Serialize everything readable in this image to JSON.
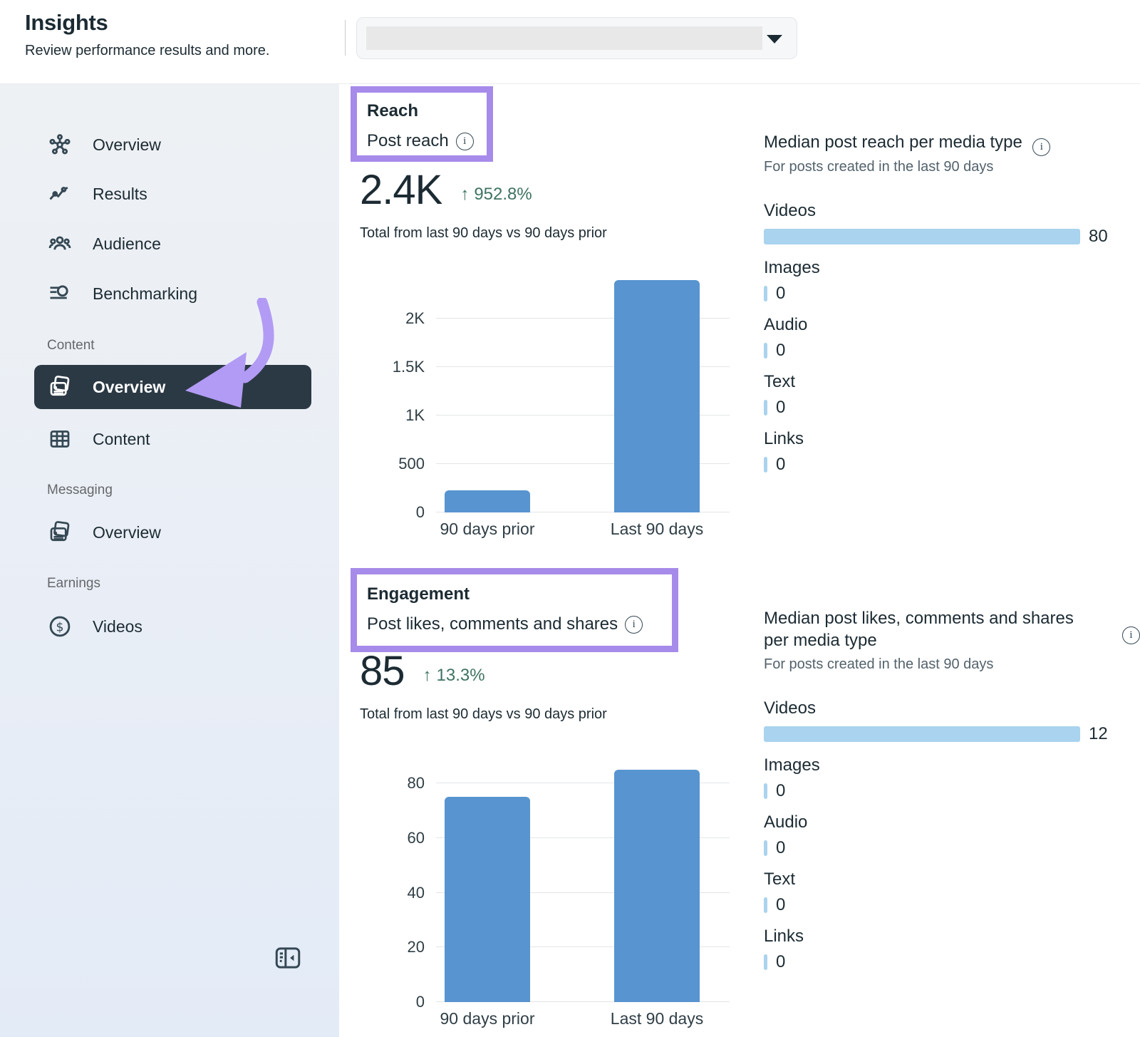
{
  "header": {
    "title": "Insights",
    "subtitle": "Review performance results and more."
  },
  "sidebar": {
    "main_items": [
      {
        "label": "Overview",
        "icon": "network-icon"
      },
      {
        "label": "Results",
        "icon": "trend-icon"
      },
      {
        "label": "Audience",
        "icon": "people-icon"
      },
      {
        "label": "Benchmarking",
        "icon": "benchmark-search-icon"
      }
    ],
    "sections": [
      {
        "label": "Content",
        "items": [
          {
            "label": "Overview",
            "icon": "posts-icon",
            "selected": true
          },
          {
            "label": "Content",
            "icon": "table-icon",
            "selected": false
          }
        ]
      },
      {
        "label": "Messaging",
        "items": [
          {
            "label": "Overview",
            "icon": "posts-icon",
            "selected": false
          }
        ]
      },
      {
        "label": "Earnings",
        "items": [
          {
            "label": "Videos",
            "icon": "dollar-icon",
            "selected": false
          }
        ]
      }
    ]
  },
  "reach": {
    "section_label": "Reach",
    "metric_label": "Post reach",
    "total": "2.4K",
    "change": "952.8%",
    "change_direction": "up",
    "caption": "Total from last 90 days vs 90 days prior"
  },
  "engagement": {
    "section_label": "Engagement",
    "metric_label": "Post likes, comments and shares",
    "total": "85",
    "change": "13.3%",
    "change_direction": "up",
    "caption": "Total from last 90 days vs 90 days prior"
  },
  "colors": {
    "accent_purple": "#a78bea",
    "arrow_purple": "#b29bf4",
    "bar_blue": "#5794d0",
    "bar_light_blue": "#a9d3ee",
    "positive_green": "#3e7363",
    "selected_dark": "#2b3945"
  },
  "chart_data": [
    {
      "type": "bar",
      "title": "Post reach",
      "categories": [
        "90 days prior",
        "Last 90 days"
      ],
      "values": [
        228,
        2400
      ],
      "ylim": [
        0,
        2430
      ],
      "yticks": [
        {
          "value": 0,
          "label": "0"
        },
        {
          "value": 500,
          "label": "500"
        },
        {
          "value": 1000,
          "label": "1K"
        },
        {
          "value": 1500,
          "label": "1.5K"
        },
        {
          "value": 2000,
          "label": "2K"
        }
      ],
      "grid": true,
      "legend": "none"
    },
    {
      "type": "bar",
      "title": "Post likes, comments and shares",
      "categories": [
        "90 days prior",
        "Last 90 days"
      ],
      "values": [
        75,
        85
      ],
      "ylim": [
        0,
        86
      ],
      "yticks": [
        {
          "value": 0,
          "label": "0"
        },
        {
          "value": 20,
          "label": "20"
        },
        {
          "value": 40,
          "label": "40"
        },
        {
          "value": 60,
          "label": "60"
        },
        {
          "value": 80,
          "label": "80"
        }
      ],
      "grid": true,
      "legend": "none"
    },
    {
      "type": "bar-horizontal",
      "title": "Median post reach per media type",
      "subtitle": "For posts created in the last 90 days",
      "categories": [
        "Videos",
        "Images",
        "Audio",
        "Text",
        "Links"
      ],
      "values": [
        80,
        0,
        0,
        0,
        0
      ],
      "xmax": 80
    },
    {
      "type": "bar-horizontal",
      "title": "Median post likes, comments and shares per media type",
      "subtitle": "For posts created in the last 90 days",
      "categories": [
        "Videos",
        "Images",
        "Audio",
        "Text",
        "Links"
      ],
      "values": [
        12,
        0,
        0,
        0,
        0
      ],
      "xmax": 12
    }
  ]
}
